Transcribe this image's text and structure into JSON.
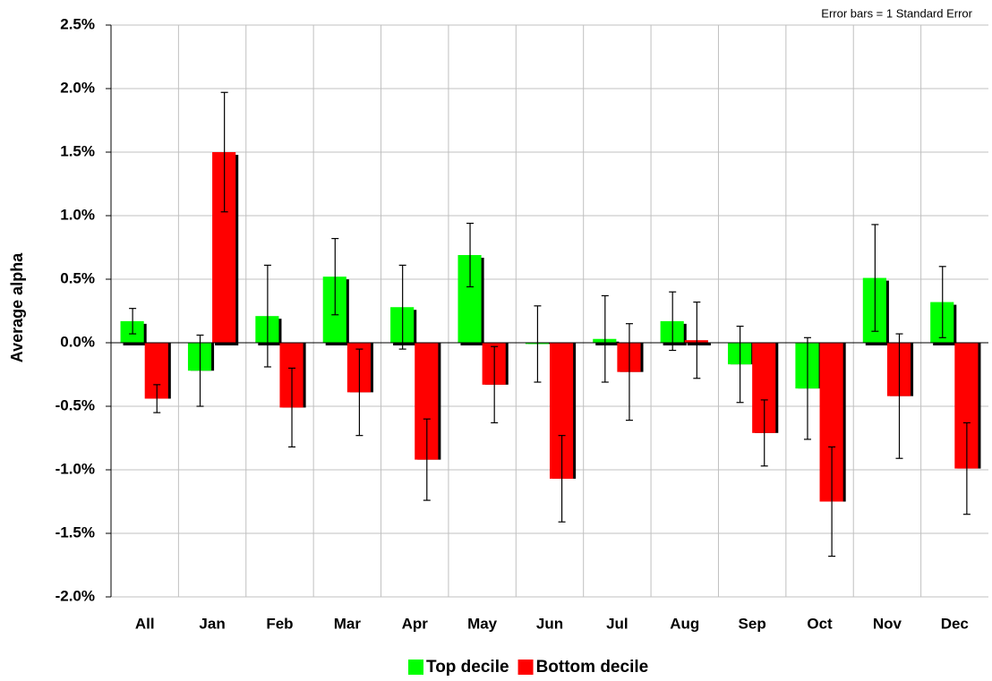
{
  "chart_data": {
    "type": "bar",
    "y_label": "Average alpha",
    "annotation": "Error bars = 1 Standard Error",
    "categories": [
      "All",
      "Jan",
      "Feb",
      "Mar",
      "Apr",
      "May",
      "Jun",
      "Jul",
      "Aug",
      "Sep",
      "Oct",
      "Nov",
      "Dec"
    ],
    "series": [
      {
        "name": "Top decile",
        "color": "#00ff00",
        "values": [
          0.17,
          -0.22,
          0.21,
          0.52,
          0.28,
          0.69,
          -0.01,
          0.03,
          0.17,
          -0.17,
          -0.36,
          0.51,
          0.32
        ],
        "errors": [
          0.1,
          0.28,
          0.4,
          0.3,
          0.33,
          0.25,
          0.3,
          0.34,
          0.23,
          0.3,
          0.4,
          0.42,
          0.28
        ]
      },
      {
        "name": "Bottom decile",
        "color": "#ff0000",
        "values": [
          -0.44,
          1.5,
          -0.51,
          -0.39,
          -0.92,
          -0.33,
          -1.07,
          -0.23,
          0.02,
          -0.71,
          -1.25,
          -0.42,
          -0.99
        ],
        "errors": [
          0.11,
          0.47,
          0.31,
          0.34,
          0.32,
          0.3,
          0.34,
          0.38,
          0.3,
          0.26,
          0.43,
          0.49,
          0.36
        ]
      }
    ],
    "ylim": [
      -2.0,
      2.5
    ],
    "yticks": [
      {
        "value": -2.0,
        "label": "-2.0%"
      },
      {
        "value": -1.5,
        "label": "-1.5%"
      },
      {
        "value": -1.0,
        "label": "-1.0%"
      },
      {
        "value": -0.5,
        "label": "-0.5%"
      },
      {
        "value": 0.0,
        "label": "0.0%"
      },
      {
        "value": 0.5,
        "label": "0.5%"
      },
      {
        "value": 1.0,
        "label": "1.0%"
      },
      {
        "value": 1.5,
        "label": "1.5%"
      },
      {
        "value": 2.0,
        "label": "2.0%"
      },
      {
        "value": 2.5,
        "label": "2.5%"
      }
    ],
    "grid": true,
    "legend": "bottom"
  }
}
